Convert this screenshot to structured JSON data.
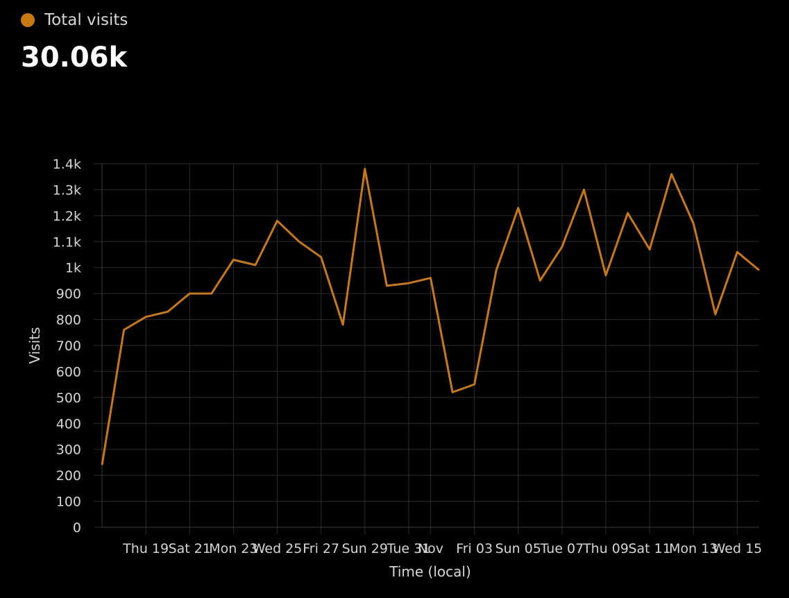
{
  "legend": {
    "label": "Total visits",
    "color": "#c87a10"
  },
  "total": "30.06k",
  "chart_data": {
    "type": "line",
    "title": "",
    "xlabel": "Time (local)",
    "ylabel": "Visits",
    "ylim": [
      0,
      1400
    ],
    "grid": true,
    "y_ticks": [
      {
        "v": 0,
        "label": "0"
      },
      {
        "v": 100,
        "label": "100"
      },
      {
        "v": 200,
        "label": "200"
      },
      {
        "v": 300,
        "label": "300"
      },
      {
        "v": 400,
        "label": "400"
      },
      {
        "v": 500,
        "label": "500"
      },
      {
        "v": 600,
        "label": "600"
      },
      {
        "v": 700,
        "label": "700"
      },
      {
        "v": 800,
        "label": "800"
      },
      {
        "v": 900,
        "label": "900"
      },
      {
        "v": 1000,
        "label": "1k"
      },
      {
        "v": 1100,
        "label": "1.1k"
      },
      {
        "v": 1200,
        "label": "1.2k"
      },
      {
        "v": 1300,
        "label": "1.3k"
      },
      {
        "v": 1400,
        "label": "1.4k"
      }
    ],
    "x_ticks": [
      {
        "i": 2,
        "label": "Thu 19"
      },
      {
        "i": 4,
        "label": "Sat 21"
      },
      {
        "i": 6,
        "label": "Mon 23"
      },
      {
        "i": 8,
        "label": "Wed 25"
      },
      {
        "i": 10,
        "label": "Fri 27"
      },
      {
        "i": 12,
        "label": "Sun 29"
      },
      {
        "i": 14,
        "label": "Tue 31"
      },
      {
        "i": 15,
        "label": "Nov"
      },
      {
        "i": 17,
        "label": "Fri 03"
      },
      {
        "i": 19,
        "label": "Sun 05"
      },
      {
        "i": 21,
        "label": "Tue 07"
      },
      {
        "i": 23,
        "label": "Thu 09"
      },
      {
        "i": 25,
        "label": "Sat 11"
      },
      {
        "i": 27,
        "label": "Mon 13"
      },
      {
        "i": 29,
        "label": "Wed 15"
      }
    ],
    "x": [
      "Oct 17",
      "Oct 18",
      "Oct 19",
      "Oct 20",
      "Oct 21",
      "Oct 22",
      "Oct 23",
      "Oct 24",
      "Oct 25",
      "Oct 26",
      "Oct 27",
      "Oct 28",
      "Oct 29",
      "Oct 30",
      "Oct 31",
      "Nov 01",
      "Nov 02",
      "Nov 03",
      "Nov 04",
      "Nov 05",
      "Nov 06",
      "Nov 07",
      "Nov 08",
      "Nov 09",
      "Nov 10",
      "Nov 11",
      "Nov 12",
      "Nov 13",
      "Nov 14",
      "Nov 15",
      "Nov 16"
    ],
    "series": [
      {
        "name": "Total visits",
        "color": "#c87a10",
        "values": [
          240,
          760,
          810,
          830,
          900,
          900,
          1030,
          1010,
          1180,
          1100,
          1040,
          780,
          1380,
          930,
          940,
          960,
          520,
          550,
          990,
          1230,
          950,
          1080,
          1300,
          970,
          1210,
          1070,
          1360,
          1170,
          820,
          1060,
          990
        ]
      }
    ]
  }
}
